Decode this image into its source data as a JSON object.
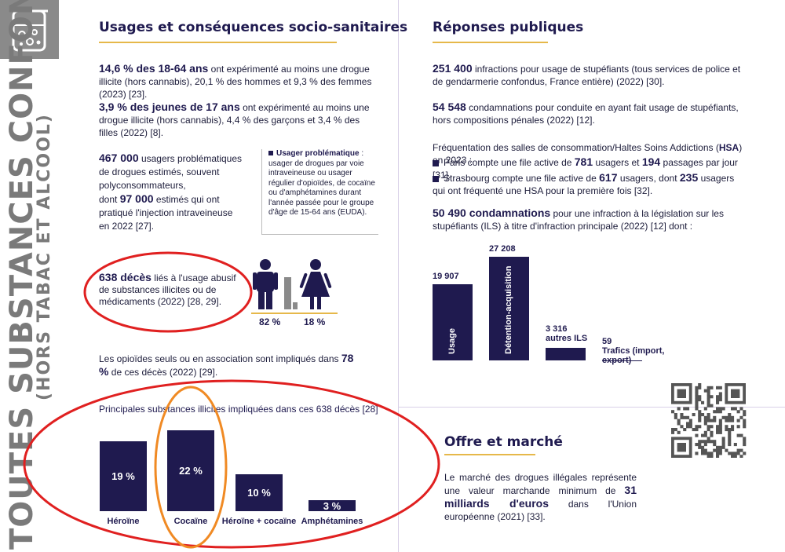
{
  "side": {
    "title_line1": "TOUTES SUBSTANCES CONFONDUES",
    "title_line2": "(HORS TABAC ET ALCOOL)",
    "icon": "flask-icon"
  },
  "usages": {
    "title": "Usages et conséquences socio-sanitaires",
    "p1_bold": "14,6 % des 18-64 ans",
    "p1_rest": " ont expérimenté au moins une drogue illicite (hors cannabis), 20,1 % des hommes et 9,3 % des femmes (2023) [23].",
    "p2_bold": "3,9 % des jeunes de 17 ans",
    "p2_rest": " ont expérimenté au moins une drogue illicite (hors cannabis), 4,4 % des garçons et 3,4 % des filles (2022) [8].",
    "p3_bold1": "467 000",
    "p3_text1": " usagers problématiques de drogues estimés, souvent polyconsommateurs,",
    "p3_text2": "dont ",
    "p3_bold2": "97 000",
    "p3_text3": " estimés qui ont pratiqué l'injection intraveineuse en 2022 [27].",
    "def_title": "Usager problématique",
    "def_text": " : usager de drogues par voie intraveineuse ou usager régulier d'opioïdes, de cocaïne ou d'amphétamines durant l'année passée pour le groupe d'âge de 15-64 ans (EUDA).",
    "deaths_bold": "638 décès",
    "deaths_rest": " liés à l'usage abusif de substances illicites ou de médicaments (2022) [28, 29].",
    "men_pct": "82 %",
    "women_pct": "18 %",
    "men_share": 0.82,
    "women_share": 0.18,
    "opioids_text": "Les opioïdes seuls ou en association sont impliqués dans ces ",
    "opioids_pre": "Les opioïdes seuls ou en association sont impliqués dans ",
    "opioids_bold": "78 %",
    "opioids_post": " de ces décès (2022) [29].",
    "chart_title": "Principales substances illicites impliquées dans ces 638 décès [28]"
  },
  "reponses": {
    "title": "Réponses publiques",
    "r1_bold": "251 400",
    "r1_rest": " infractions pour usage de stupéfiants (tous services de police et de gendarmerie confondus, France entière) (2022) [30].",
    "r2_bold": "54 548",
    "r2_rest": " condamnations pour conduite en ayant fait usage de stupéfiants, hors compositions pénales (2022) [12].",
    "hsa_intro_pre": "Fréquentation des salles de consommation/Haltes Soins Addictions (",
    "hsa_intro_bold": "HSA",
    "hsa_intro_post": ") en 2023 :",
    "paris_pre": "Paris compte une file active de ",
    "paris_b1": "781",
    "paris_mid": " usagers et ",
    "paris_b2": "194",
    "paris_post": " passages par jour [31].",
    "stras_pre": "Strasbourg compte une file active de ",
    "stras_b1": "617",
    "stras_mid": " usagers, dont ",
    "stras_b2": "235",
    "stras_post": " usagers qui ont fréquenté une HSA pour la première fois [32].",
    "cond_bold": "50 490 condamnations",
    "cond_rest": " pour une infraction à la législation sur les stupéfiants (ILS) à titre d'infraction principale (2022) [12] dont :"
  },
  "offre": {
    "title": "Offre et marché",
    "text_pre": "Le marché des drogues illégales représente une valeur marchande minimum de ",
    "text_bold": "31 milliards d'euros",
    "text_post": " dans l'Union européenne (2021) [33]."
  },
  "chart_data": [
    {
      "type": "bar",
      "title": "Principales substances illicites impliquées dans ces 638 décès [28]",
      "categories": [
        "Héroïne",
        "Cocaïne",
        "Héroïne + cocaïne",
        "Amphétamines"
      ],
      "values": [
        19,
        22,
        10,
        3
      ],
      "value_labels": [
        "19 %",
        "22 %",
        "10 %",
        "3 %"
      ],
      "unit": "%"
    },
    {
      "type": "bar",
      "categories": [
        "Usage",
        "Détention-acquisition",
        "autres ILS",
        "Trafics (import, export)"
      ],
      "values": [
        19907,
        27208,
        3316,
        59
      ],
      "value_labels": [
        "19 907",
        "27 208",
        "3 316",
        "59"
      ]
    }
  ],
  "colors": {
    "navy": "#1f1a4f",
    "accent_line": "#e6b84a",
    "circle_red": "#e02020",
    "circle_orange": "#f08a24",
    "grey": "#8a8a8a"
  }
}
